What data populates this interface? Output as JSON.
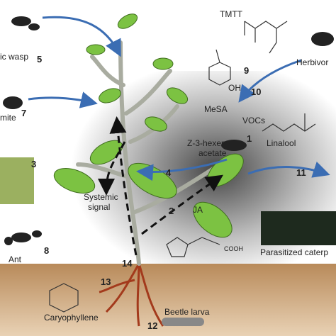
{
  "labels": {
    "parasitic_wasp": "ic wasp",
    "tmtt": "TMTT",
    "herbivore": "Herbivor",
    "mesa": "MeSA",
    "oh": "OH",
    "vocs": "VOCs",
    "mite": "mite",
    "hexenyl_acetate": [
      "Z-3-hexenyl",
      "acetate"
    ],
    "linalool": "Linalool",
    "systemic_signal": [
      "Systemic",
      "signal"
    ],
    "ja": "JA",
    "cooh": "COOH",
    "parasitized_caterpillar": "Parasitized caterp",
    "ant": "Ant",
    "caryophyllene": "Caryophyllene",
    "beetle_larva": "Beetle larva"
  },
  "steps": [
    1,
    2,
    3,
    4,
    5,
    7,
    8,
    9,
    10,
    11,
    12,
    13,
    14
  ]
}
